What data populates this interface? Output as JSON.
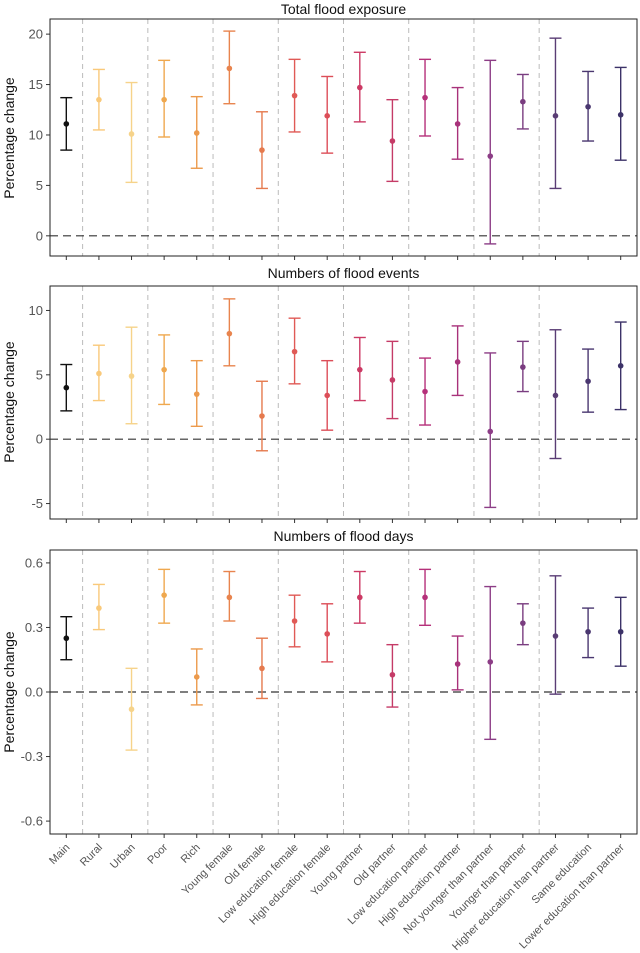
{
  "chart_data": [
    {
      "type": "errorbar",
      "title": "Total flood exposure",
      "ylabel": "Percentage change",
      "ylim": [
        -2,
        21.5
      ],
      "yticks": [
        "0",
        "5",
        "10",
        "15",
        "20"
      ],
      "ytick_values": [
        0,
        5,
        10,
        15,
        20
      ],
      "reference_line": 0,
      "points": [
        {
          "est": 11.1,
          "lo": 8.5,
          "hi": 13.7
        },
        {
          "est": 13.5,
          "lo": 10.5,
          "hi": 16.5
        },
        {
          "est": 10.1,
          "lo": 5.3,
          "hi": 15.2
        },
        {
          "est": 13.5,
          "lo": 9.8,
          "hi": 17.4
        },
        {
          "est": 10.2,
          "lo": 6.7,
          "hi": 13.8
        },
        {
          "est": 16.6,
          "lo": 13.1,
          "hi": 20.3
        },
        {
          "est": 8.5,
          "lo": 4.7,
          "hi": 12.3
        },
        {
          "est": 13.9,
          "lo": 10.3,
          "hi": 17.5
        },
        {
          "est": 11.9,
          "lo": 8.2,
          "hi": 15.8
        },
        {
          "est": 14.7,
          "lo": 11.3,
          "hi": 18.2
        },
        {
          "est": 9.4,
          "lo": 5.4,
          "hi": 13.5
        },
        {
          "est": 13.7,
          "lo": 9.9,
          "hi": 17.5
        },
        {
          "est": 11.1,
          "lo": 7.6,
          "hi": 14.7
        },
        {
          "est": 7.9,
          "lo": -0.8,
          "hi": 17.4
        },
        {
          "est": 13.3,
          "lo": 10.6,
          "hi": 16.0
        },
        {
          "est": 11.9,
          "lo": 4.7,
          "hi": 19.6
        },
        {
          "est": 12.8,
          "lo": 9.4,
          "hi": 16.3
        },
        {
          "est": 12.0,
          "lo": 7.5,
          "hi": 16.7
        }
      ]
    },
    {
      "type": "errorbar",
      "title": "Numbers of flood events",
      "ylabel": "Percentage change",
      "ylim": [
        -6.2,
        11.9
      ],
      "yticks": [
        "-5",
        "0",
        "5",
        "10"
      ],
      "ytick_values": [
        -5,
        0,
        5,
        10
      ],
      "reference_line": 0,
      "points": [
        {
          "est": 4.0,
          "lo": 2.2,
          "hi": 5.8
        },
        {
          "est": 5.1,
          "lo": 3.0,
          "hi": 7.3
        },
        {
          "est": 4.9,
          "lo": 1.2,
          "hi": 8.7
        },
        {
          "est": 5.4,
          "lo": 2.7,
          "hi": 8.1
        },
        {
          "est": 3.5,
          "lo": 1.0,
          "hi": 6.1
        },
        {
          "est": 8.2,
          "lo": 5.7,
          "hi": 10.9
        },
        {
          "est": 1.8,
          "lo": -0.9,
          "hi": 4.5
        },
        {
          "est": 6.8,
          "lo": 4.3,
          "hi": 9.4
        },
        {
          "est": 3.4,
          "lo": 0.7,
          "hi": 6.1
        },
        {
          "est": 5.4,
          "lo": 3.0,
          "hi": 7.9
        },
        {
          "est": 4.6,
          "lo": 1.6,
          "hi": 7.6
        },
        {
          "est": 3.7,
          "lo": 1.1,
          "hi": 6.3
        },
        {
          "est": 6.0,
          "lo": 3.4,
          "hi": 8.8
        },
        {
          "est": 0.6,
          "lo": -5.3,
          "hi": 6.7
        },
        {
          "est": 5.6,
          "lo": 3.7,
          "hi": 7.6
        },
        {
          "est": 3.4,
          "lo": -1.5,
          "hi": 8.5
        },
        {
          "est": 4.5,
          "lo": 2.1,
          "hi": 7.0
        },
        {
          "est": 5.7,
          "lo": 2.3,
          "hi": 9.1
        }
      ]
    },
    {
      "type": "errorbar",
      "title": "Numbers of flood days",
      "ylabel": "Percentage change",
      "ylim": [
        -0.66,
        0.66
      ],
      "yticks": [
        "-0.6",
        "-0.3",
        "0.0",
        "0.3",
        "0.6"
      ],
      "ytick_values": [
        -0.6,
        -0.3,
        0.0,
        0.3,
        0.6
      ],
      "reference_line": 0,
      "points": [
        {
          "est": 0.25,
          "lo": 0.15,
          "hi": 0.35
        },
        {
          "est": 0.39,
          "lo": 0.29,
          "hi": 0.5
        },
        {
          "est": -0.08,
          "lo": -0.27,
          "hi": 0.11
        },
        {
          "est": 0.45,
          "lo": 0.32,
          "hi": 0.57
        },
        {
          "est": 0.07,
          "lo": -0.06,
          "hi": 0.2
        },
        {
          "est": 0.44,
          "lo": 0.33,
          "hi": 0.56
        },
        {
          "est": 0.11,
          "lo": -0.03,
          "hi": 0.25
        },
        {
          "est": 0.33,
          "lo": 0.21,
          "hi": 0.45
        },
        {
          "est": 0.27,
          "lo": 0.14,
          "hi": 0.41
        },
        {
          "est": 0.44,
          "lo": 0.32,
          "hi": 0.56
        },
        {
          "est": 0.08,
          "lo": -0.07,
          "hi": 0.22
        },
        {
          "est": 0.44,
          "lo": 0.31,
          "hi": 0.57
        },
        {
          "est": 0.13,
          "lo": 0.01,
          "hi": 0.26
        },
        {
          "est": 0.14,
          "lo": -0.22,
          "hi": 0.49
        },
        {
          "est": 0.32,
          "lo": 0.22,
          "hi": 0.41
        },
        {
          "est": 0.26,
          "lo": -0.01,
          "hi": 0.54
        },
        {
          "est": 0.28,
          "lo": 0.16,
          "hi": 0.39
        },
        {
          "est": 0.28,
          "lo": 0.12,
          "hi": 0.44
        }
      ]
    }
  ],
  "categories": [
    "Main",
    "Rural",
    "Urban",
    "Poor",
    "Rich",
    "Young female",
    "Old female",
    "Low education female",
    "High education female",
    "Young partner",
    "Old partner",
    "Low education partner",
    "High education partner",
    "Not younger than partner",
    "Younger than partner",
    "Higher education than partner",
    "Same education",
    "Lower education than partner"
  ],
  "colors": [
    "#111111",
    "#f9c97a",
    "#f6d38a",
    "#efa84f",
    "#ec9a4c",
    "#e8844e",
    "#e57a4e",
    "#e05a56",
    "#dc4e58",
    "#cc3a64",
    "#c53b67",
    "#b5307a",
    "#a8327a",
    "#8c3d86",
    "#7a3d80",
    "#5a3d75",
    "#4a3770",
    "#3c3268"
  ],
  "group_separators_after": [
    0,
    2,
    4,
    6,
    8,
    10,
    12,
    14
  ]
}
